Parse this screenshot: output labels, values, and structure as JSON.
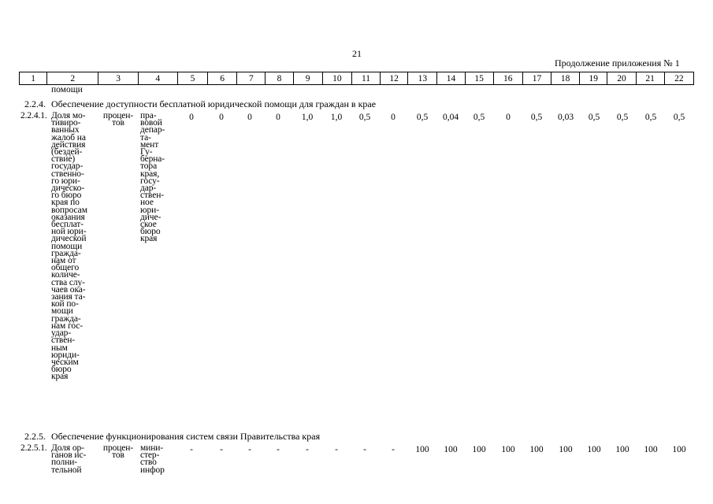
{
  "page_number": "21",
  "continuation_note": "Продолжение приложения № 1",
  "columns": [
    "1",
    "2",
    "3",
    "4",
    "5",
    "6",
    "7",
    "8",
    "9",
    "10",
    "11",
    "12",
    "13",
    "14",
    "15",
    "16",
    "17",
    "18",
    "19",
    "20",
    "21",
    "22"
  ],
  "carryover": "помощи",
  "sections": [
    {
      "code": "2.2.4.",
      "title": "Обеспечение доступности бесплатной юридической помощи для граждан в крае",
      "indicator": {
        "code": "2.2.4.1.",
        "name_lines": [
          "Доля мо-",
          "тивиро-",
          "ванных",
          "жалоб на",
          "действия",
          "(бездей-",
          "ствие)",
          "государ-",
          "ственно-",
          "го юри-",
          "дическо-",
          "го бюро",
          "края по",
          "вопросам",
          "оказания",
          "бесплат-",
          "ной юри-",
          "дической",
          "помощи",
          "гражда-",
          "нам от",
          "общего",
          "количе-",
          "ства слу-",
          "чаев ока-",
          "зания та-",
          "кой по-",
          "мощи",
          "гражда-",
          "нам гос-",
          "удар-",
          "ствен-",
          "ным",
          "юриди-",
          "ческим",
          "бюро",
          "края"
        ],
        "unit_lines": [
          "процен-",
          "тов"
        ],
        "responsible_lines": [
          "пра-",
          "вовой",
          "депар-",
          "та-",
          "мент",
          "Гу-",
          "берна-",
          "тора",
          "края,",
          "госу-",
          "дар-",
          "ствен-",
          "ное",
          "юри-",
          "диче-",
          "ское",
          "бюро",
          "края"
        ],
        "values": [
          "0",
          "0",
          "0",
          "0",
          "1,0",
          "1,0",
          "0,5",
          "0",
          "0,5",
          "0,04",
          "0,5",
          "0",
          "0,5",
          "0,03",
          "0,5",
          "0,5",
          "0,5",
          "0,5"
        ]
      }
    },
    {
      "code": "2.2.5.",
      "title": "Обеспечение функционирования систем связи Правительства края",
      "indicator": {
        "code": "2.2.5.1.",
        "name_lines": [
          "Доля ор-",
          "ганов ис-",
          "полни-",
          "тельной"
        ],
        "unit_lines": [
          "процен-",
          "тов"
        ],
        "responsible_lines": [
          "мини-",
          "стер-",
          "ство",
          "инфор"
        ],
        "values": [
          "-",
          "-",
          "-",
          "-",
          "-",
          "-",
          "-",
          "-",
          "100",
          "100",
          "100",
          "100",
          "100",
          "100",
          "100",
          "100",
          "100",
          "100"
        ]
      }
    }
  ]
}
